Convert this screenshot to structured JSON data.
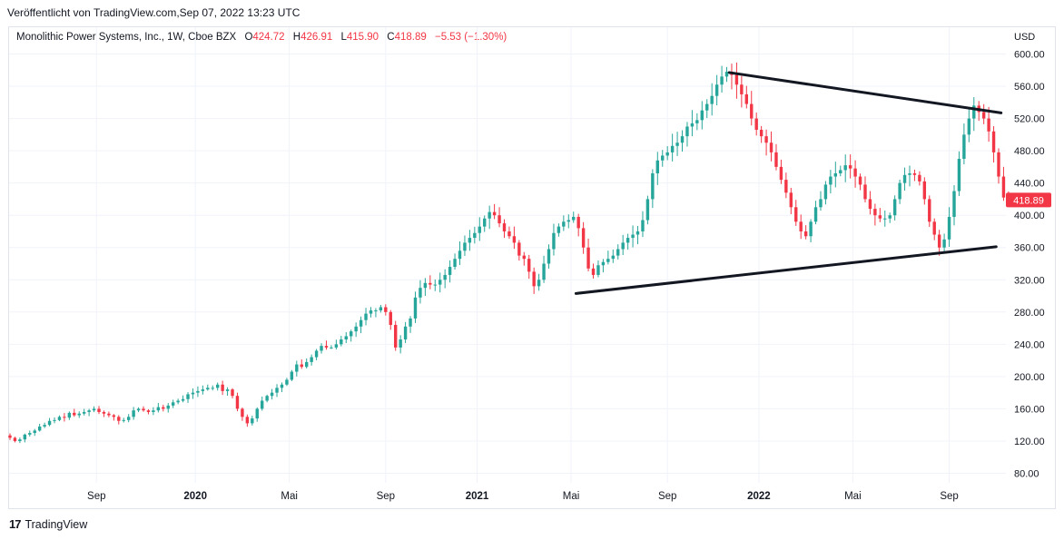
{
  "caption": "Veröffentlicht von TradingView.com,Sep 07, 2022 13:23 UTC",
  "legend": {
    "symbol": "Monolithic Power Systems, Inc., 1W, Cboe BZX",
    "o_label": "O",
    "o_value": "424.72",
    "h_label": "H",
    "h_value": "426.91",
    "l_label": "L",
    "l_value": "415.90",
    "c_label": "C",
    "c_value": "418.89",
    "change": "−5.53 (−1.30%)"
  },
  "currency": "USD",
  "footer": {
    "logo": "17",
    "brand": "TradingView"
  },
  "colors": {
    "up": "#26a69a",
    "down": "#f23645",
    "grid": "#f0f3fa",
    "trendline": "#131722"
  },
  "chart_data": {
    "type": "candlestick",
    "interval": "1W",
    "ylim": [
      60,
      610
    ],
    "y_ticks": [
      80,
      120,
      160,
      200,
      240,
      280,
      320,
      360,
      400,
      440,
      480,
      520,
      560,
      600
    ],
    "y_tick_labels": [
      "80.00",
      "120.00",
      "160.00",
      "200.00",
      "240.00",
      "280.00",
      "320.00",
      "360.00",
      "400.00",
      "440.00",
      "480.00",
      "520.00",
      "560.00",
      "600.00"
    ],
    "x_ticks": [
      {
        "label": "Sep",
        "idx": 17.5,
        "bold": false
      },
      {
        "label": "2020",
        "idx": 37.5,
        "bold": true
      },
      {
        "label": "Mai",
        "idx": 56.5,
        "bold": false
      },
      {
        "label": "Sep",
        "idx": 76,
        "bold": false
      },
      {
        "label": "2021",
        "idx": 94.5,
        "bold": true
      },
      {
        "label": "Mai",
        "idx": 113.5,
        "bold": false
      },
      {
        "label": "Sep",
        "idx": 133,
        "bold": false
      },
      {
        "label": "2022",
        "idx": 151.5,
        "bold": true
      },
      {
        "label": "Mai",
        "idx": 170.5,
        "bold": false
      },
      {
        "label": "Sep",
        "idx": 190,
        "bold": false
      }
    ],
    "closes": [
      124,
      120,
      122,
      128,
      130,
      133,
      138,
      140,
      145,
      146,
      150,
      149,
      155,
      152,
      154,
      156,
      158,
      160,
      156,
      154,
      152,
      150,
      145,
      146,
      150,
      158,
      160,
      158,
      156,
      158,
      162,
      160,
      164,
      168,
      170,
      172,
      178,
      180,
      182,
      184,
      186,
      186,
      190,
      182,
      184,
      176,
      160,
      150,
      142,
      148,
      160,
      170,
      176,
      180,
      186,
      190,
      196,
      206,
      215,
      212,
      218,
      224,
      232,
      238,
      236,
      236,
      240,
      246,
      250,
      256,
      262,
      270,
      278,
      282,
      282,
      286,
      280,
      264,
      236,
      246,
      262,
      272,
      298,
      310,
      316,
      314,
      314,
      320,
      326,
      336,
      346,
      356,
      366,
      372,
      378,
      386,
      396,
      404,
      400,
      390,
      380,
      374,
      366,
      350,
      346,
      330,
      312,
      320,
      340,
      358,
      378,
      386,
      392,
      394,
      398,
      384,
      360,
      334,
      326,
      338,
      342,
      346,
      350,
      358,
      366,
      372,
      376,
      380,
      394,
      420,
      452,
      468,
      474,
      478,
      486,
      490,
      498,
      510,
      514,
      518,
      530,
      538,
      548,
      562,
      572,
      578,
      574,
      562,
      550,
      538,
      520,
      506,
      498,
      490,
      478,
      460,
      444,
      428,
      410,
      392,
      380,
      374,
      392,
      410,
      420,
      438,
      448,
      452,
      456,
      462,
      458,
      448,
      438,
      420,
      408,
      400,
      396,
      396,
      400,
      420,
      440,
      450,
      452,
      450,
      442,
      420,
      392,
      376,
      360,
      370,
      398,
      430,
      470,
      500,
      520,
      536,
      528,
      520,
      504,
      478,
      448,
      422,
      420,
      418.89
    ],
    "trendlines": [
      {
        "from": {
          "idx": 145.5,
          "price": 577
        },
        "to": {
          "idx": 200.5,
          "price": 527
        }
      },
      {
        "from": {
          "idx": 114.5,
          "price": 303
        },
        "to": {
          "idx": 199.5,
          "price": 361
        }
      }
    ],
    "last_price_label": "418.89"
  }
}
